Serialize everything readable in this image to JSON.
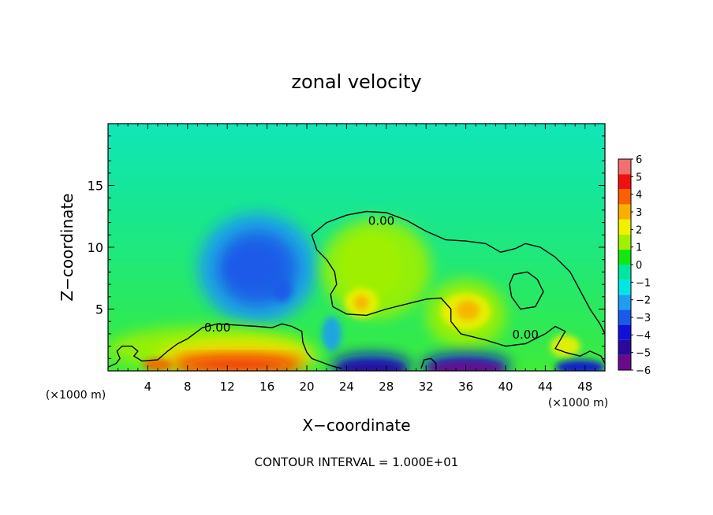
{
  "chart_data": {
    "type": "heatmap",
    "title": "zonal velocity",
    "xlabel": "X−coordinate",
    "ylabel": "Z−coordinate",
    "x_unit_left": "(×1000 m)",
    "x_unit_right": "(×1000 m)",
    "footer": "CONTOUR INTERVAL = 1.000E+01",
    "xlim": [
      0,
      50
    ],
    "ylim": [
      0,
      20
    ],
    "x_ticks": [
      4,
      8,
      12,
      16,
      20,
      24,
      28,
      32,
      36,
      40,
      44,
      48
    ],
    "x_tick_labels": [
      "4",
      "8",
      "12",
      "16",
      "20",
      "24",
      "28",
      "32",
      "36",
      "40",
      "44",
      "48"
    ],
    "y_ticks": [
      5,
      10,
      15
    ],
    "y_tick_labels": [
      "5",
      "10",
      "15"
    ],
    "colorbar": {
      "range": [
        -6,
        6
      ],
      "tick_labels": [
        "6",
        "5",
        "4",
        "3",
        "2",
        "1",
        "0",
        "−1",
        "−2",
        "−3",
        "−4",
        "−5",
        "−6"
      ],
      "colors": [
        "#6a0a8a",
        "#2a0a9a",
        "#1010d8",
        "#1a5ae8",
        "#1e9ef0",
        "#00e6e6",
        "#00e6a0",
        "#10e810",
        "#a0f000",
        "#f0f000",
        "#f8b000",
        "#f86000",
        "#f01010",
        "#f07070"
      ]
    },
    "contour_labels": [
      {
        "text": "0.00",
        "x": 27.5,
        "y": 11.8
      },
      {
        "text": "0.00",
        "x": 11,
        "y": 3.2
      },
      {
        "text": "0.00",
        "x": 42,
        "y": 2.6
      }
    ],
    "zero_contour": [
      [
        [
          20.5,
          11
        ],
        [
          22,
          12
        ],
        [
          24,
          12.6
        ],
        [
          26,
          12.9
        ],
        [
          28,
          12.8
        ],
        [
          30,
          12.2
        ],
        [
          32,
          11.3
        ],
        [
          34,
          10.6
        ],
        [
          36,
          10.5
        ],
        [
          38,
          10.3
        ],
        [
          39.5,
          9.6
        ],
        [
          41,
          9.9
        ],
        [
          42,
          10.3
        ],
        [
          43.5,
          10
        ],
        [
          45,
          9.2
        ],
        [
          46.5,
          8
        ],
        [
          47.5,
          6.5
        ],
        [
          48.5,
          5
        ],
        [
          49.5,
          3.8
        ],
        [
          50,
          3
        ]
      ],
      [
        [
          20.5,
          11
        ],
        [
          21,
          9.8
        ],
        [
          22,
          9
        ],
        [
          22.8,
          8
        ],
        [
          23,
          7
        ],
        [
          22.4,
          6.2
        ],
        [
          22.6,
          5.2
        ],
        [
          24,
          4.6
        ],
        [
          26,
          4.5
        ],
        [
          28,
          5
        ],
        [
          30,
          5.4
        ],
        [
          32,
          5.8
        ],
        [
          33.5,
          5.9
        ],
        [
          34.5,
          5
        ],
        [
          34.5,
          4
        ],
        [
          35.5,
          3
        ],
        [
          38,
          2.5
        ],
        [
          40,
          2
        ],
        [
          42,
          2.2
        ],
        [
          44,
          3
        ],
        [
          45,
          3.6
        ],
        [
          46,
          3.2
        ],
        [
          45.5,
          2.5
        ],
        [
          45,
          1.8
        ],
        [
          46,
          1.5
        ],
        [
          47.5,
          1.2
        ],
        [
          48.5,
          1.6
        ],
        [
          49.6,
          1.2
        ],
        [
          50,
          0.6
        ]
      ],
      [
        [
          0,
          0.3
        ],
        [
          0.8,
          0.6
        ],
        [
          1.2,
          1
        ],
        [
          0.9,
          1.6
        ],
        [
          1.4,
          2
        ],
        [
          2.4,
          2
        ],
        [
          3,
          1.6
        ],
        [
          2.6,
          1.2
        ],
        [
          3.4,
          0.8
        ],
        [
          5,
          0.9
        ],
        [
          6,
          1.6
        ],
        [
          7,
          2.2
        ],
        [
          8,
          2.6
        ],
        [
          9.5,
          3.5
        ],
        [
          11,
          3.8
        ],
        [
          13,
          3.7
        ],
        [
          15,
          3.6
        ],
        [
          16.5,
          3.5
        ],
        [
          17.5,
          3.8
        ],
        [
          18.5,
          3.6
        ],
        [
          19.5,
          3.2
        ],
        [
          19.6,
          2.3
        ],
        [
          20,
          1.5
        ],
        [
          20.5,
          1
        ],
        [
          21.5,
          0.7
        ],
        [
          22.5,
          0.4
        ],
        [
          23.5,
          0.2
        ]
      ],
      [
        [
          40.8,
          7.8
        ],
        [
          42.2,
          8
        ],
        [
          43.2,
          7.4
        ],
        [
          43.8,
          6.4
        ],
        [
          43,
          5.2
        ],
        [
          41.5,
          5
        ],
        [
          40.6,
          6
        ],
        [
          40.4,
          7
        ],
        [
          40.8,
          7.8
        ]
      ],
      [
        [
          31.5,
          0.2
        ],
        [
          31.8,
          0.9
        ],
        [
          32.5,
          1
        ],
        [
          33,
          0.6
        ],
        [
          33,
          0.2
        ]
      ]
    ],
    "features": [
      {
        "x": 15,
        "y": 8.3,
        "rx": 6,
        "ry": 4.5,
        "value": -2
      },
      {
        "x": 15,
        "y": 8.3,
        "rx": 4,
        "ry": 3,
        "value": -2.6
      },
      {
        "x": 14.5,
        "y": 8.4,
        "rx": 2.5,
        "ry": 1.5,
        "value": -3.2
      },
      {
        "x": 17.5,
        "y": 6.5,
        "rx": 1,
        "ry": 0.9,
        "value": -2.6
      },
      {
        "x": 22.5,
        "y": 3,
        "rx": 1,
        "ry": 1.4,
        "value": -2.5
      },
      {
        "x": 10,
        "y": 1.8,
        "rx": 10,
        "ry": 1.8,
        "value": 1
      },
      {
        "x": 13,
        "y": 1.2,
        "rx": 8,
        "ry": 1.3,
        "value": 2
      },
      {
        "x": 13,
        "y": 0.8,
        "rx": 7,
        "ry": 1,
        "value": 3.2
      },
      {
        "x": 13,
        "y": 0.5,
        "rx": 6.5,
        "ry": 0.6,
        "value": 4.5
      },
      {
        "x": 5,
        "y": 0.5,
        "rx": 1.5,
        "ry": 0.5,
        "value": 4.2
      },
      {
        "x": 27,
        "y": 8.3,
        "rx": 5.5,
        "ry": 4,
        "value": 1
      },
      {
        "x": 26.5,
        "y": 8.5,
        "rx": 3,
        "ry": 2.5,
        "value": 1.5
      },
      {
        "x": 25.5,
        "y": 5.5,
        "rx": 1.7,
        "ry": 1.2,
        "value": 2
      },
      {
        "x": 25.5,
        "y": 5.5,
        "rx": 0.7,
        "ry": 0.6,
        "value": 3.3
      },
      {
        "x": 36,
        "y": 4.6,
        "rx": 4,
        "ry": 2.8,
        "value": 1.2
      },
      {
        "x": 36,
        "y": 4.8,
        "rx": 2.5,
        "ry": 1.5,
        "value": 2
      },
      {
        "x": 36.2,
        "y": 4.9,
        "rx": 1.2,
        "ry": 0.8,
        "value": 3
      },
      {
        "x": 46,
        "y": 2,
        "rx": 1.5,
        "ry": 0.9,
        "value": 2
      },
      {
        "x": 26.5,
        "y": 0.4,
        "rx": 4,
        "ry": 1,
        "value": -3.5
      },
      {
        "x": 26.5,
        "y": 0.2,
        "rx": 3.5,
        "ry": 0.5,
        "value": -4.8
      },
      {
        "x": 36,
        "y": 0.4,
        "rx": 4.5,
        "ry": 1,
        "value": -3.8
      },
      {
        "x": 36,
        "y": 0.2,
        "rx": 3.8,
        "ry": 0.6,
        "value": -5.5
      },
      {
        "x": 47.5,
        "y": 0.3,
        "rx": 2.5,
        "ry": 0.6,
        "value": -4
      }
    ]
  }
}
